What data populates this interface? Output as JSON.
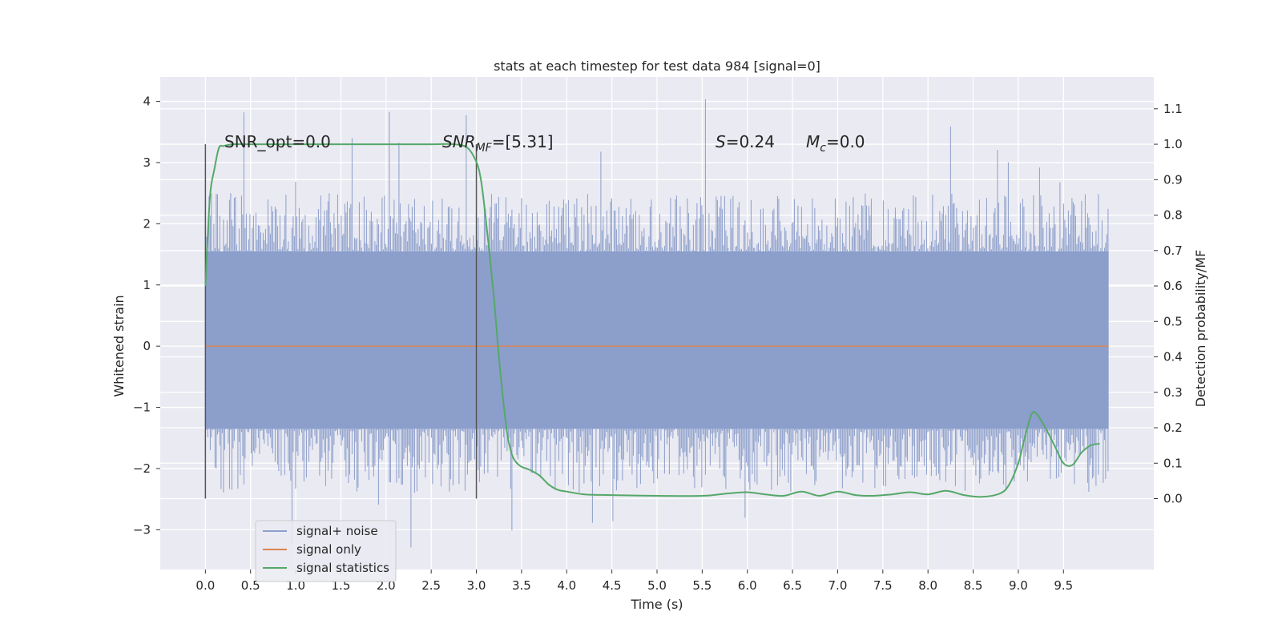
{
  "chart_data": {
    "type": "line",
    "title": "stats at each timestep for test data 984 [signal=0]",
    "xlabel": "Time (s)",
    "ylabel_left": "Whitened strain",
    "ylabel_right": "Detection probability/MF",
    "xlim": [
      -0.5,
      10.5
    ],
    "ylim_left": [
      -3.65,
      4.4
    ],
    "ylim_right": [
      -0.2,
      1.19
    ],
    "x_ticks": [
      "0.0",
      "0.5",
      "1.0",
      "1.5",
      "2.0",
      "2.5",
      "3.0",
      "3.5",
      "4.0",
      "4.5",
      "5.0",
      "5.5",
      "6.0",
      "6.5",
      "7.0",
      "7.5",
      "8.0",
      "8.5",
      "9.0",
      "9.5"
    ],
    "y_ticks_left": [
      "−3",
      "−2",
      "−1",
      "0",
      "1",
      "2",
      "3",
      "4"
    ],
    "y_ticks_right": [
      "0.0",
      "0.1",
      "0.2",
      "0.3",
      "0.4",
      "0.5",
      "0.6",
      "0.7",
      "0.8",
      "0.9",
      "1.0",
      "1.1"
    ],
    "grid": true,
    "legend_position": "lower-left",
    "annotations": {
      "snr_opt": "SNR_opt=0.0",
      "snr_mf_italic": "SNR",
      "snr_mf_sub": "MF",
      "snr_mf_value": "=[5.31]",
      "s_italic": "S",
      "s_value": "=0.24",
      "mc_italic": "M",
      "mc_sub": "c",
      "mc_value": "=0.0"
    },
    "vertical_markers_x": [
      0.0,
      3.0
    ],
    "colors": {
      "signal_noise": "#8c9fcb",
      "signal_only": "#dd8452",
      "statistics": "#55a868",
      "plot_bg": "#eaeaf2",
      "grid": "#ffffff",
      "marker": "#555555"
    },
    "series": [
      {
        "name": "signal+ noise",
        "axis": "left",
        "style": "dense noise band",
        "x_range": [
          0.0,
          10.0
        ],
        "core_band": [
          -1.35,
          1.55
        ],
        "typical_envelope": [
          -2.4,
          2.5
        ],
        "extreme_range": [
          -3.3,
          4.05
        ]
      },
      {
        "name": "signal only",
        "axis": "left",
        "x": [
          0.0,
          10.0
        ],
        "values": [
          0.0,
          0.0
        ]
      },
      {
        "name": "signal statistics",
        "axis": "right",
        "x": [
          0.0,
          0.05,
          0.1,
          0.15,
          0.2,
          0.3,
          0.5,
          1.0,
          1.5,
          2.0,
          2.5,
          2.75,
          2.9,
          3.0,
          3.05,
          3.1,
          3.15,
          3.2,
          3.25,
          3.3,
          3.35,
          3.4,
          3.45,
          3.5,
          3.6,
          3.7,
          3.8,
          3.9,
          4.0,
          4.2,
          4.5,
          5.0,
          5.5,
          5.8,
          6.0,
          6.2,
          6.4,
          6.6,
          6.8,
          7.0,
          7.2,
          7.4,
          7.6,
          7.8,
          8.0,
          8.2,
          8.4,
          8.6,
          8.8,
          8.9,
          9.0,
          9.05,
          9.1,
          9.15,
          9.2,
          9.3,
          9.4,
          9.5,
          9.6,
          9.7,
          9.8,
          9.9
        ],
        "values": [
          0.6,
          0.85,
          0.93,
          0.99,
          0.995,
          1.0,
          1.0,
          1.0,
          1.0,
          1.0,
          1.0,
          1.0,
          0.99,
          0.95,
          0.9,
          0.8,
          0.68,
          0.55,
          0.4,
          0.27,
          0.17,
          0.12,
          0.1,
          0.09,
          0.08,
          0.065,
          0.04,
          0.025,
          0.02,
          0.012,
          0.01,
          0.008,
          0.008,
          0.015,
          0.018,
          0.012,
          0.008,
          0.02,
          0.008,
          0.02,
          0.01,
          0.008,
          0.012,
          0.018,
          0.012,
          0.022,
          0.01,
          0.005,
          0.015,
          0.04,
          0.1,
          0.15,
          0.2,
          0.24,
          0.24,
          0.2,
          0.15,
          0.1,
          0.095,
          0.13,
          0.15,
          0.155
        ]
      }
    ]
  }
}
